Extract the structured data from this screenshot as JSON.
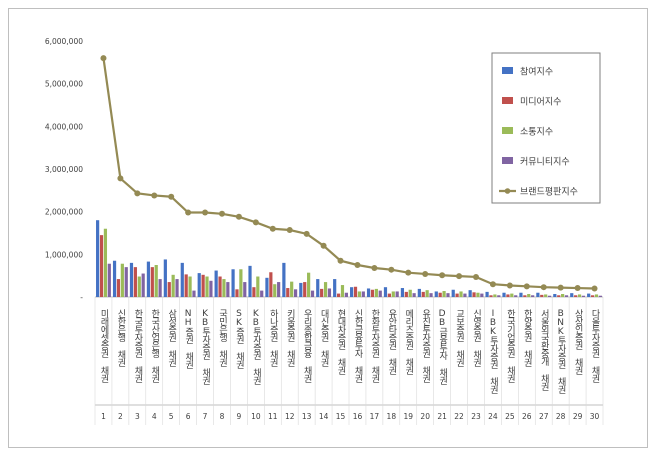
{
  "chart_data": {
    "type": "bar",
    "title": "",
    "xlabel": "",
    "ylabel": "",
    "ylim": [
      0,
      6000000
    ],
    "yticks": [
      "-",
      "1,000,000",
      "2,000,000",
      "3,000,000",
      "4,000,000",
      "5,000,000",
      "6,000,000"
    ],
    "grid": false,
    "legend_position": "top-right",
    "categories": [
      "미래에셋증권 채권",
      "신한은행 채권",
      "한국투자증권 채권",
      "한국산업은행 채권",
      "삼성증권 채권",
      "NH증권 채권",
      "KB투자증권 채권",
      "국민은행 채권",
      "SK증권 채권",
      "KB투자증권 채권",
      "하나증권 채권",
      "키움증권 채권",
      "우리종합금융 채권",
      "대신증권 채권",
      "현대차증권 채권",
      "신한금융투자 채권",
      "한화투자증권 채권",
      "유안타증권 채권",
      "메리츠증권 채권",
      "유진투자증권 채권",
      "DB금융투자 채권",
      "교보증권 채권",
      "신영증권 채권",
      "IBK투자증권 채권",
      "한국기업증권 채권",
      "한양증권 채권",
      "서울외국환중개 채권",
      "BNK투자증권 채권",
      "상상인증권 채권",
      "다올투자증권 채권"
    ],
    "index_labels": [
      "1",
      "2",
      "3",
      "4",
      "5",
      "6",
      "7",
      "8",
      "9",
      "10",
      "11",
      "12",
      "13",
      "14",
      "15",
      "16",
      "17",
      "18",
      "19",
      "20",
      "21",
      "22",
      "23",
      "24",
      "25",
      "26",
      "27",
      "28",
      "29",
      "30"
    ],
    "series": [
      {
        "name": "참여지수",
        "kind": "bar",
        "color": "#4472c4",
        "values": [
          1800000,
          850000,
          800000,
          830000,
          880000,
          800000,
          560000,
          620000,
          650000,
          730000,
          450000,
          800000,
          330000,
          420000,
          420000,
          230000,
          200000,
          230000,
          210000,
          190000,
          130000,
          170000,
          160000,
          120000,
          100000,
          100000,
          100000,
          70000,
          90000,
          80000
        ]
      },
      {
        "name": "미디어지수",
        "kind": "bar",
        "color": "#c0504d",
        "values": [
          1450000,
          420000,
          700000,
          700000,
          350000,
          530000,
          520000,
          480000,
          180000,
          230000,
          580000,
          210000,
          350000,
          190000,
          80000,
          240000,
          170000,
          80000,
          120000,
          120000,
          100000,
          80000,
          110000,
          40000,
          60000,
          40000,
          50000,
          40000,
          40000,
          40000
        ]
      },
      {
        "name": "소통지수",
        "kind": "bar",
        "color": "#9bbb59",
        "values": [
          1600000,
          780000,
          480000,
          750000,
          520000,
          480000,
          480000,
          420000,
          650000,
          480000,
          300000,
          360000,
          570000,
          350000,
          280000,
          130000,
          190000,
          130000,
          170000,
          160000,
          140000,
          130000,
          100000,
          60000,
          80000,
          70000,
          60000,
          70000,
          60000,
          60000
        ]
      },
      {
        "name": "커뮤니티지수",
        "kind": "bar",
        "color": "#8064a2",
        "values": [
          780000,
          700000,
          550000,
          420000,
          420000,
          150000,
          380000,
          350000,
          350000,
          150000,
          350000,
          180000,
          150000,
          200000,
          100000,
          130000,
          150000,
          130000,
          90000,
          90000,
          90000,
          80000,
          80000,
          40000,
          40000,
          40000,
          30000,
          40000,
          30000,
          30000
        ]
      },
      {
        "name": "브랜드평판지수",
        "kind": "line",
        "color": "#948a54",
        "values": [
          5600000,
          2780000,
          2430000,
          2380000,
          2350000,
          1980000,
          1980000,
          1950000,
          1880000,
          1750000,
          1600000,
          1570000,
          1480000,
          1200000,
          850000,
          750000,
          680000,
          640000,
          570000,
          540000,
          510000,
          490000,
          470000,
          300000,
          270000,
          250000,
          230000,
          220000,
          210000,
          200000
        ]
      }
    ]
  }
}
